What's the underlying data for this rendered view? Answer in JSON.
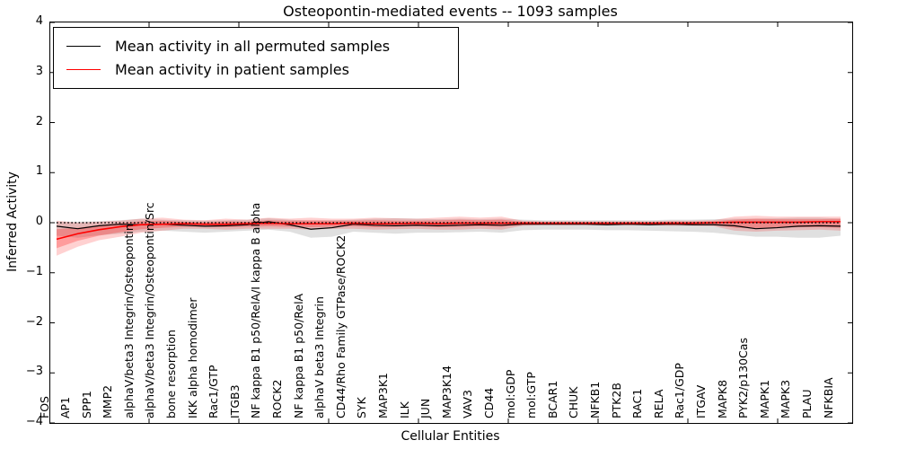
{
  "title": "Osteopontin-mediated events -- 1093 samples",
  "axes": {
    "ylabel": "Inferred Activity",
    "xlabel": "Cellular Entities",
    "ytick_labels": [
      "4",
      "3",
      "2",
      "1",
      "0",
      "−1",
      "−2",
      "−3",
      "−4"
    ],
    "ylim": [
      -4,
      4
    ]
  },
  "legend": {
    "entries": [
      {
        "label": "Mean activity in all permuted samples",
        "color": "#000000"
      },
      {
        "label": "Mean activity in patient samples",
        "color": "#ff0000"
      }
    ]
  },
  "colors": {
    "permuted_line": "#000000",
    "patient_line": "#ff0000",
    "permuted_band": "rgba(0,0,0,0.12)",
    "patient_band_outer": "rgba(255,0,0,0.18)",
    "patient_band_inner": "rgba(255,0,0,0.25)",
    "zero_line": "#000000",
    "frame": "#000000"
  },
  "chart_data": {
    "type": "line",
    "title": "Osteopontin-mediated events -- 1093 samples",
    "xlabel": "Cellular Entities",
    "ylabel": "Inferred Activity",
    "ylim": [
      -4,
      4
    ],
    "grid": false,
    "legend_position": "upper left",
    "reference_line": {
      "y": 0,
      "style": "dotted",
      "color": "#000000"
    },
    "categories": [
      "FOS",
      "AP1",
      "SPP1",
      "MMP2",
      "alphaV/beta3 Integrin/Osteopontin",
      "alphaV/beta3 Integrin/Osteopontin/Src",
      "bone resorption",
      "IKK alpha homodimer",
      "Rac1/GTP",
      "ITGB3",
      "NF kappa B1 p50/RelA/I kappa B alpha",
      "ROCK2",
      "NF kappa B1 p50/RelA",
      "alphaV beta3 Integrin",
      "CD44/Rho Family GTPase/ROCK2",
      "SYK",
      "MAP3K1",
      "ILK",
      "JUN",
      "MAP3K14",
      "VAV3",
      "CD44",
      "mol:GDP",
      "mol:GTP",
      "BCAR1",
      "CHUK",
      "NFKB1",
      "PTK2B",
      "RAC1",
      "RELA",
      "Rac1/GDP",
      "ITGAV",
      "MAPK8",
      "PYK2/p130Cas",
      "MAPK1",
      "MAPK3",
      "PLAU",
      "NFKBIA"
    ],
    "series": [
      {
        "name": "Mean activity in all permuted samples",
        "color": "#000000",
        "values": [
          -0.07,
          -0.12,
          -0.06,
          -0.03,
          -0.04,
          -0.03,
          -0.05,
          -0.07,
          -0.06,
          -0.04,
          0.02,
          -0.04,
          -0.13,
          -0.1,
          -0.03,
          -0.05,
          -0.06,
          -0.05,
          -0.06,
          -0.05,
          -0.04,
          -0.05,
          -0.03,
          -0.03,
          -0.03,
          -0.03,
          -0.04,
          -0.03,
          -0.04,
          -0.03,
          -0.04,
          -0.04,
          -0.06,
          -0.12,
          -0.1,
          -0.07,
          -0.06,
          -0.07
        ],
        "band": {
          "upper": [
            0.02,
            0.02,
            0.03,
            0.05,
            0.08,
            0.06,
            0.05,
            0.04,
            0.05,
            0.06,
            0.09,
            0.06,
            0.04,
            0.05,
            0.06,
            0.08,
            0.09,
            0.08,
            0.07,
            0.08,
            0.07,
            0.08,
            0.06,
            0.05,
            0.05,
            0.05,
            0.05,
            0.05,
            0.05,
            0.06,
            0.06,
            0.07,
            0.08,
            0.08,
            0.09,
            0.1,
            0.1,
            0.08
          ],
          "lower": [
            -0.26,
            -0.3,
            -0.25,
            -0.22,
            -0.18,
            -0.16,
            -0.18,
            -0.2,
            -0.18,
            -0.16,
            -0.14,
            -0.18,
            -0.3,
            -0.28,
            -0.18,
            -0.2,
            -0.22,
            -0.2,
            -0.2,
            -0.19,
            -0.18,
            -0.2,
            -0.15,
            -0.14,
            -0.14,
            -0.14,
            -0.15,
            -0.15,
            -0.16,
            -0.17,
            -0.18,
            -0.2,
            -0.24,
            -0.28,
            -0.28,
            -0.3,
            -0.3,
            -0.26
          ]
        }
      },
      {
        "name": "Mean activity in patient samples",
        "color": "#ff0000",
        "values": [
          -0.33,
          -0.22,
          -0.14,
          -0.08,
          -0.04,
          -0.03,
          -0.02,
          -0.03,
          -0.03,
          -0.02,
          -0.01,
          -0.02,
          -0.02,
          -0.02,
          -0.01,
          -0.02,
          -0.02,
          -0.01,
          -0.02,
          -0.01,
          -0.01,
          -0.01,
          -0.01,
          -0.01,
          -0.01,
          -0.01,
          -0.01,
          -0.01,
          -0.01,
          -0.01,
          -0.01,
          0.0,
          0.01,
          0.01,
          0.01,
          0.01,
          0.02,
          0.02
        ],
        "band_outer": {
          "upper": [
            0.04,
            0.0,
            0.02,
            0.04,
            0.08,
            0.1,
            0.06,
            0.05,
            0.08,
            0.06,
            0.1,
            0.08,
            0.1,
            0.08,
            0.08,
            0.1,
            0.09,
            0.08,
            0.1,
            0.12,
            0.1,
            0.12,
            0.04,
            0.03,
            0.03,
            0.03,
            0.03,
            0.03,
            0.03,
            0.04,
            0.04,
            0.05,
            0.12,
            0.14,
            0.12,
            0.12,
            0.12,
            0.12
          ],
          "lower": [
            -0.66,
            -0.48,
            -0.35,
            -0.28,
            -0.2,
            -0.16,
            -0.12,
            -0.12,
            -0.14,
            -0.12,
            -0.12,
            -0.12,
            -0.14,
            -0.12,
            -0.12,
            -0.14,
            -0.13,
            -0.12,
            -0.14,
            -0.14,
            -0.12,
            -0.14,
            -0.06,
            -0.05,
            -0.05,
            -0.05,
            -0.05,
            -0.05,
            -0.05,
            -0.06,
            -0.06,
            -0.07,
            -0.16,
            -0.18,
            -0.16,
            -0.15,
            -0.14,
            -0.16
          ]
        },
        "band_inner": {
          "upper": [
            -0.13,
            -0.1,
            -0.05,
            -0.01,
            0.03,
            0.04,
            0.02,
            0.01,
            0.03,
            0.02,
            0.05,
            0.04,
            0.05,
            0.04,
            0.04,
            0.05,
            0.04,
            0.04,
            0.05,
            0.06,
            0.05,
            0.06,
            0.02,
            0.01,
            0.01,
            0.01,
            0.01,
            0.01,
            0.01,
            0.02,
            0.02,
            0.03,
            0.06,
            0.08,
            0.07,
            0.07,
            0.07,
            0.08
          ],
          "lower": [
            -0.51,
            -0.36,
            -0.26,
            -0.19,
            -0.13,
            -0.1,
            -0.08,
            -0.08,
            -0.09,
            -0.08,
            -0.07,
            -0.08,
            -0.09,
            -0.08,
            -0.07,
            -0.09,
            -0.08,
            -0.07,
            -0.09,
            -0.08,
            -0.07,
            -0.08,
            -0.04,
            -0.03,
            -0.03,
            -0.03,
            -0.03,
            -0.03,
            -0.03,
            -0.04,
            -0.04,
            -0.04,
            -0.1,
            -0.11,
            -0.1,
            -0.09,
            -0.09,
            -0.1
          ]
        }
      }
    ]
  }
}
